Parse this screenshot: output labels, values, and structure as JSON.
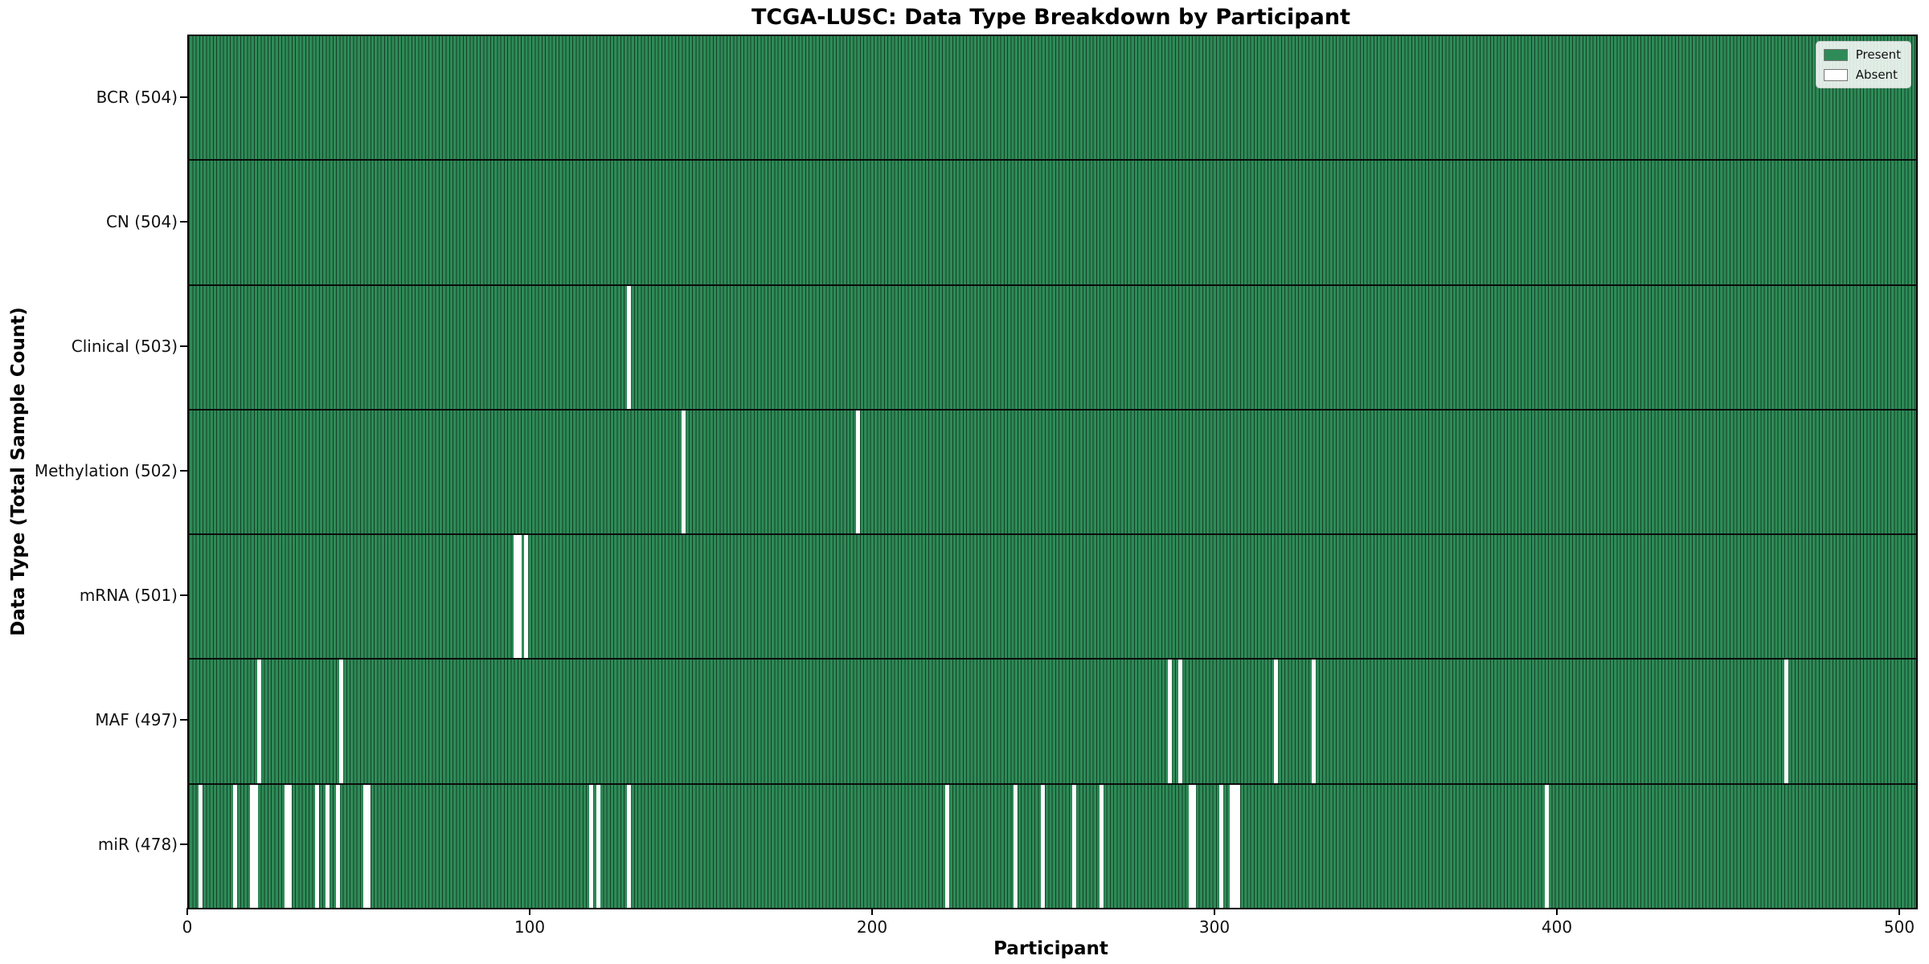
{
  "chart_data": {
    "type": "heatmap",
    "title": "TCGA-LUSC: Data Type Breakdown by Participant",
    "xlabel": "Participant",
    "ylabel": "Data Type (Total Sample Count)",
    "x_ticks": [
      0,
      100,
      200,
      300,
      400,
      500
    ],
    "xlim": [
      0,
      504
    ],
    "n_participants": 504,
    "grid": false,
    "legend": {
      "position": "upper right",
      "items": [
        {
          "label": "Present",
          "color": "#2e8b57"
        },
        {
          "label": "Absent",
          "color": "#ffffff"
        }
      ]
    },
    "colors": {
      "present": "#2e8b57",
      "absent": "#ffffff",
      "bar_edge": "#17402b",
      "row_separator": "#0b0b0b"
    },
    "rows": [
      {
        "label": "BCR (504)",
        "data_type": "BCR",
        "present_count": 504,
        "absent_participants": []
      },
      {
        "label": "CN (504)",
        "data_type": "CN",
        "present_count": 504,
        "absent_participants": []
      },
      {
        "label": "Clinical (503)",
        "data_type": "Clinical",
        "present_count": 503,
        "absent_participants": [
          128
        ]
      },
      {
        "label": "Methylation (502)",
        "data_type": "Methylation",
        "present_count": 502,
        "absent_participants": [
          144,
          195
        ]
      },
      {
        "label": "mRNA (501)",
        "data_type": "mRNA",
        "present_count": 501,
        "absent_participants": [
          95,
          96,
          98
        ]
      },
      {
        "label": "MAF (497)",
        "data_type": "MAF",
        "present_count": 497,
        "absent_participants": [
          20,
          44,
          286,
          289,
          317,
          328,
          466
        ]
      },
      {
        "label": "miR (478)",
        "data_type": "miR",
        "present_count": 478,
        "absent_participants": [
          3,
          13,
          18,
          19,
          28,
          29,
          37,
          40,
          43,
          51,
          52,
          117,
          119,
          128,
          221,
          241,
          249,
          258,
          266,
          292,
          293,
          301,
          304,
          305,
          306,
          396
        ]
      }
    ]
  }
}
